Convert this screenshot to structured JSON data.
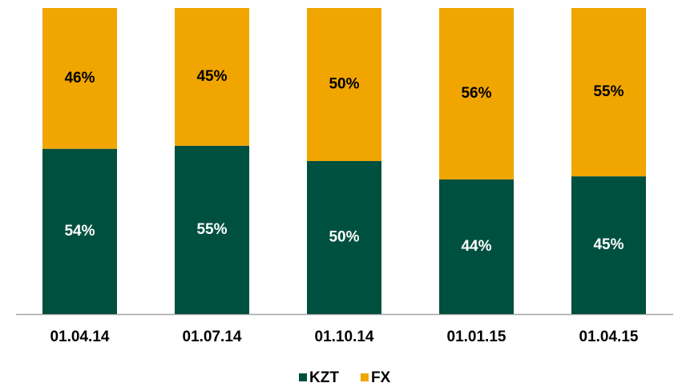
{
  "chart_data": {
    "type": "bar",
    "stacked": true,
    "categories": [
      "01.04.14",
      "01.07.14",
      "01.10.14",
      "01.01.15",
      "01.04.15"
    ],
    "series": [
      {
        "name": "KZT",
        "color": "#00503f",
        "values": [
          54,
          55,
          50,
          44,
          45
        ],
        "value_labels": [
          "54%",
          "55%",
          "50%",
          "44%",
          "45%"
        ]
      },
      {
        "name": "FX",
        "color": "#f0a500",
        "values": [
          46,
          45,
          50,
          56,
          55
        ],
        "value_labels": [
          "46%",
          "45%",
          "50%",
          "56%",
          "55%"
        ]
      }
    ],
    "ylim": [
      0,
      100
    ],
    "legend": "bottom"
  }
}
